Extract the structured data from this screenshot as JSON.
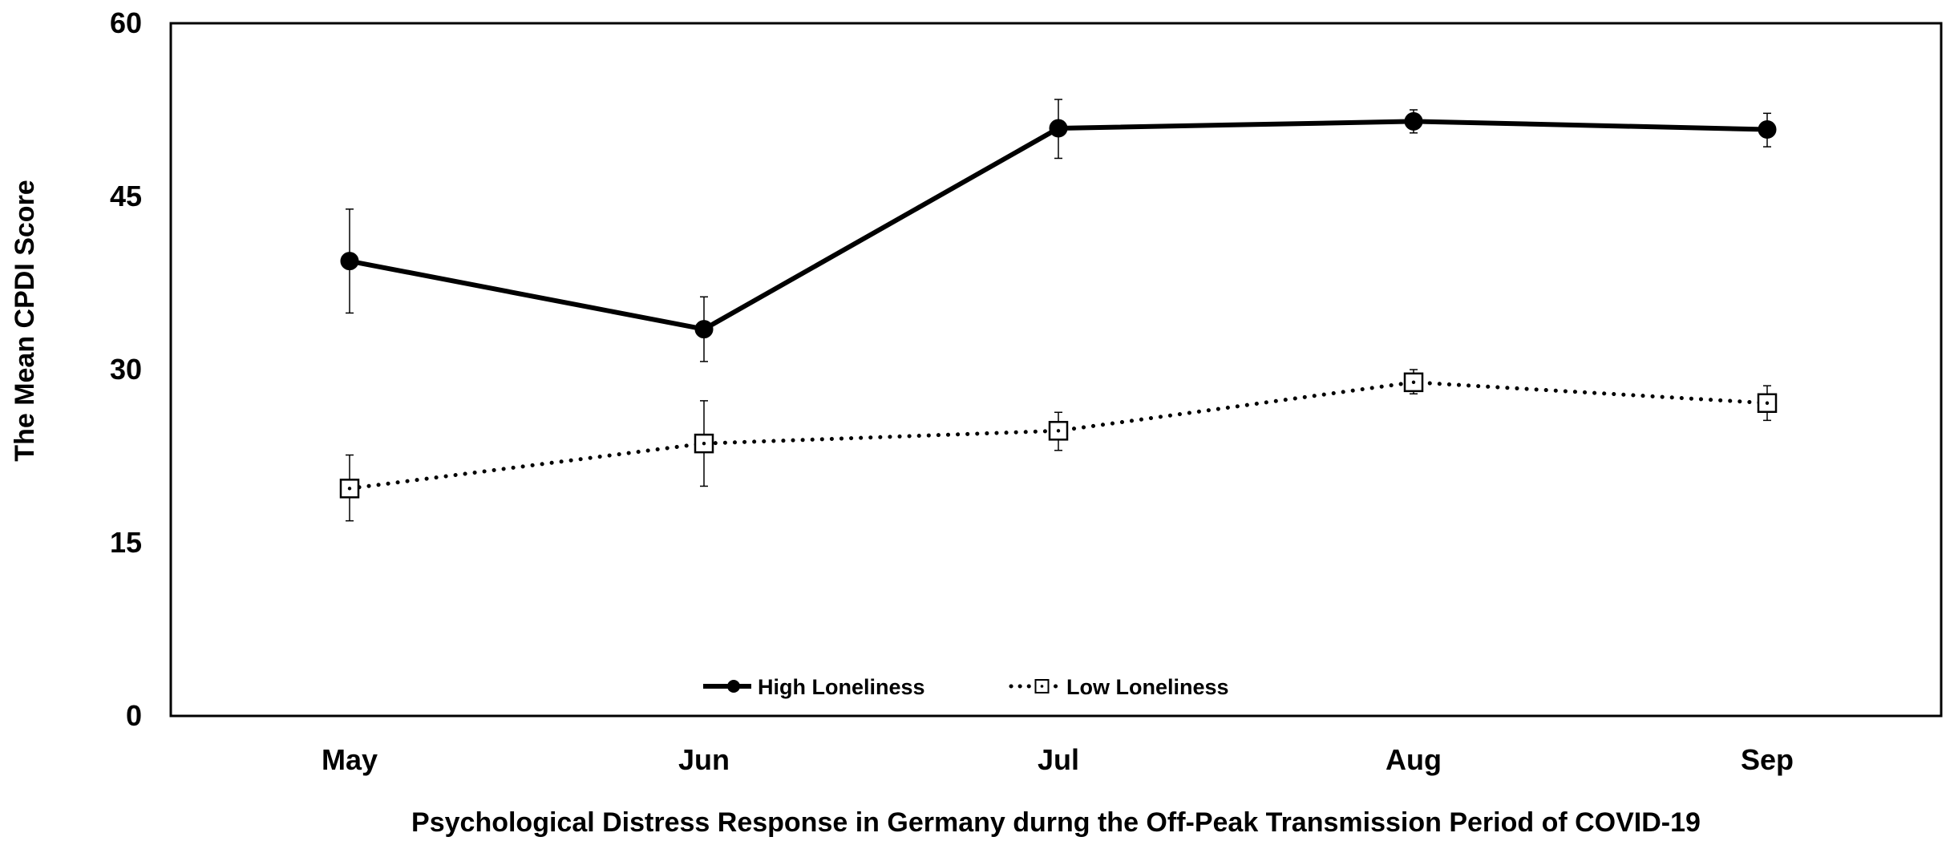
{
  "chart_data": {
    "type": "line",
    "title": "",
    "xlabel": "Psychological Distress Response in Germany durng the Off-Peak Transmission Period of COVID-19",
    "ylabel": "The Mean CPDI Score",
    "categories": [
      "May",
      "Jun",
      "Jul",
      "Aug",
      "Sep"
    ],
    "ylim": [
      0,
      60
    ],
    "yticks": [
      "0",
      "15",
      "30",
      "45",
      "60"
    ],
    "grid": false,
    "legend_position": "bottom-center",
    "series": [
      {
        "name": "High Loneliness",
        "marker": "filled-circle",
        "line_style": "solid",
        "values": [
          39.4,
          33.5,
          50.9,
          51.5,
          50.8
        ],
        "error_low": [
          34.9,
          30.7,
          48.3,
          50.5,
          49.3
        ],
        "error_high": [
          43.9,
          36.3,
          53.4,
          52.5,
          52.2
        ]
      },
      {
        "name": "Low Loneliness",
        "marker": "hollow-square",
        "line_style": "dotted",
        "values": [
          19.7,
          23.6,
          24.7,
          28.9,
          27.1
        ],
        "error_low": [
          16.9,
          19.9,
          23.0,
          27.9,
          25.6
        ],
        "error_high": [
          22.6,
          27.3,
          26.3,
          30.0,
          28.6
        ]
      }
    ],
    "colors": {
      "line": "#000000",
      "background": "#ffffff"
    }
  }
}
